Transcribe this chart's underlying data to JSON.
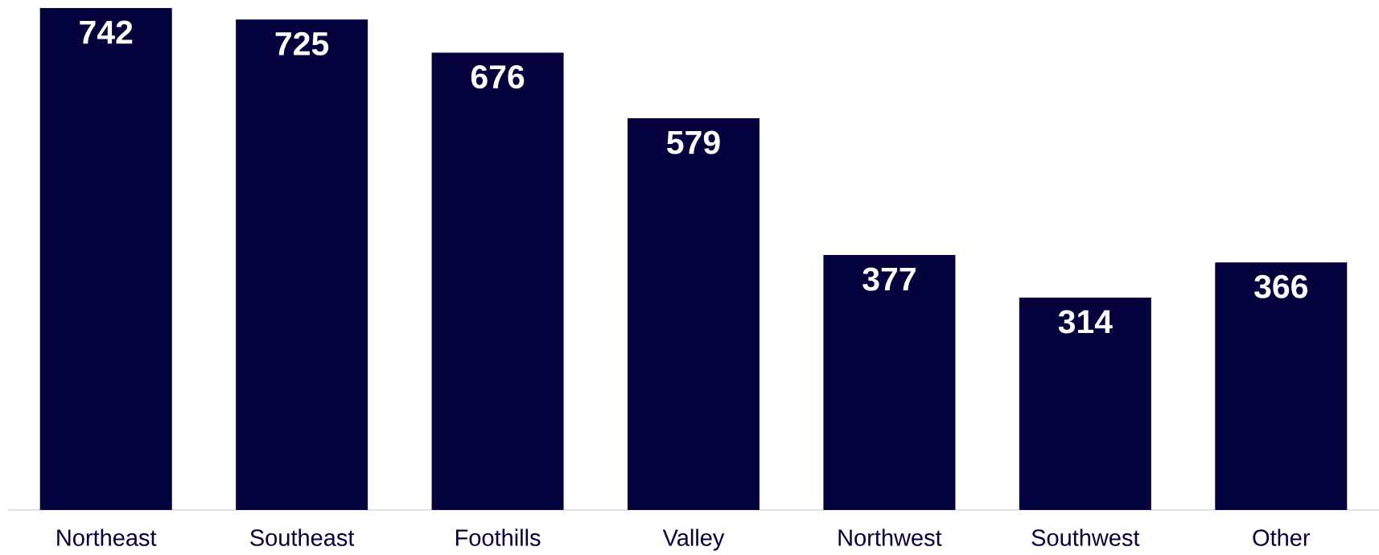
{
  "chart_data": {
    "type": "bar",
    "categories": [
      "Northeast",
      "Southeast",
      "Foothills",
      "Valley",
      "Northwest",
      "Southwest",
      "Other"
    ],
    "values": [
      742,
      725,
      676,
      579,
      377,
      314,
      366
    ],
    "color": "#03023c",
    "data_labels": true
  }
}
